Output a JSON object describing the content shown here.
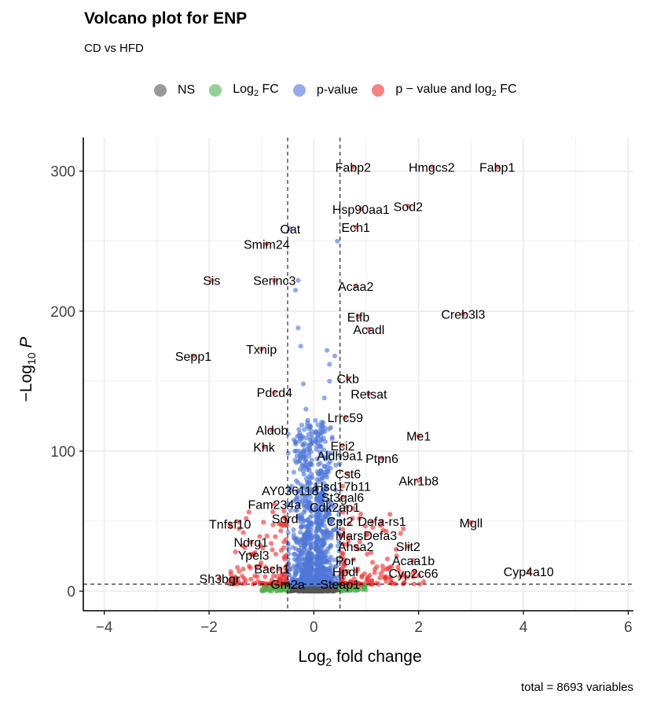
{
  "chart_data": {
    "type": "scatter",
    "title": "Volcano plot for ENP",
    "subtitle": "CD vs HFD",
    "xlabel": "Log2 fold change",
    "ylabel": "-Log10 P",
    "caption": "total = 8693 variables",
    "xlim": [
      -4.4,
      6.1
    ],
    "ylim": [
      -14,
      324
    ],
    "xticks": [
      -4,
      -2,
      0,
      2,
      4,
      6
    ],
    "yticks": [
      0,
      100,
      200,
      300
    ],
    "fc_cutoff": 0.5,
    "p_cutoff": 5,
    "grid": true,
    "legend_position": "top",
    "legend": [
      {
        "key": "NS",
        "label": "NS",
        "color": "#808080"
      },
      {
        "key": "FC",
        "label": "Log2 FC",
        "color": "#4db24d"
      },
      {
        "key": "P",
        "label": "p-value",
        "color": "#4f77d9"
      },
      {
        "key": "FC_P",
        "label": "p − value and log2 FC",
        "color": "#ee3030"
      }
    ],
    "labeled_genes": [
      {
        "gene": "Fabp2",
        "x": 0.75,
        "y": 303
      },
      {
        "gene": "Hmgcs2",
        "x": 2.25,
        "y": 303
      },
      {
        "gene": "Fabp1",
        "x": 3.5,
        "y": 303
      },
      {
        "gene": "Hsp90aa1",
        "x": 0.9,
        "y": 273
      },
      {
        "gene": "Sod2",
        "x": 1.8,
        "y": 275
      },
      {
        "gene": "Oat",
        "x": -0.45,
        "y": 259
      },
      {
        "gene": "Ech1",
        "x": 0.8,
        "y": 260
      },
      {
        "gene": "Smim24",
        "x": -0.9,
        "y": 248
      },
      {
        "gene": "Sis",
        "x": -1.95,
        "y": 222
      },
      {
        "gene": "Serinc3",
        "x": -0.75,
        "y": 222
      },
      {
        "gene": "Acaa2",
        "x": 0.8,
        "y": 218
      },
      {
        "gene": "Creb3l3",
        "x": 2.85,
        "y": 198
      },
      {
        "gene": "Etfb",
        "x": 0.85,
        "y": 196
      },
      {
        "gene": "Acadl",
        "x": 1.05,
        "y": 187
      },
      {
        "gene": "Txnip",
        "x": -1.0,
        "y": 173
      },
      {
        "gene": "Sepp1",
        "x": -2.3,
        "y": 168
      },
      {
        "gene": "Ckb",
        "x": 0.65,
        "y": 152
      },
      {
        "gene": "Pdcd4",
        "x": -0.75,
        "y": 142
      },
      {
        "gene": "Retsat",
        "x": 1.05,
        "y": 141
      },
      {
        "gene": "Lrrc59",
        "x": 0.6,
        "y": 124
      },
      {
        "gene": "Aldob",
        "x": -0.8,
        "y": 115
      },
      {
        "gene": "Me1",
        "x": 2.0,
        "y": 111
      },
      {
        "gene": "Eci2",
        "x": 0.55,
        "y": 104
      },
      {
        "gene": "Khk",
        "x": -0.95,
        "y": 103
      },
      {
        "gene": "Aldh9a1",
        "x": 0.5,
        "y": 97
      },
      {
        "gene": "Ptpn6",
        "x": 1.3,
        "y": 95
      },
      {
        "gene": "Cst6",
        "x": 0.65,
        "y": 84
      },
      {
        "gene": "Akr1b8",
        "x": 2.0,
        "y": 79
      },
      {
        "gene": "Hsd17b11",
        "x": 0.55,
        "y": 75
      },
      {
        "gene": "AY036118",
        "x": -0.45,
        "y": 72
      },
      {
        "gene": "St3gal6",
        "x": 0.55,
        "y": 67
      },
      {
        "gene": "Fam234a",
        "x": -0.75,
        "y": 62
      },
      {
        "gene": "Cdk2ap1",
        "x": 0.4,
        "y": 60
      },
      {
        "gene": "Sord",
        "x": -0.55,
        "y": 52
      },
      {
        "gene": "Cpt2",
        "x": 0.5,
        "y": 50
      },
      {
        "gene": "Defa-rs1",
        "x": 1.3,
        "y": 50
      },
      {
        "gene": "Mgll",
        "x": 3.0,
        "y": 49
      },
      {
        "gene": "Tnfsf10",
        "x": -1.6,
        "y": 48
      },
      {
        "gene": "MarsDefa3",
        "x": 1.0,
        "y": 40
      },
      {
        "gene": "Ndrg1",
        "x": -1.2,
        "y": 35
      },
      {
        "gene": "Ahsa2",
        "x": 0.8,
        "y": 32
      },
      {
        "gene": "Slit2",
        "x": 1.8,
        "y": 32
      },
      {
        "gene": "Ypel3",
        "x": -1.15,
        "y": 26
      },
      {
        "gene": "Por",
        "x": 0.6,
        "y": 22
      },
      {
        "gene": "Acaa1b",
        "x": 1.9,
        "y": 22
      },
      {
        "gene": "Bach1",
        "x": -0.8,
        "y": 16
      },
      {
        "gene": "Hpdl",
        "x": 0.6,
        "y": 14
      },
      {
        "gene": "Cyp2c66",
        "x": 1.9,
        "y": 13
      },
      {
        "gene": "Cyp4a10",
        "x": 4.1,
        "y": 14
      },
      {
        "gene": "Sh3bgr",
        "x": -1.8,
        "y": 9
      },
      {
        "gene": "Gm2a",
        "x": -0.5,
        "y": 5
      },
      {
        "gene": "Steap1",
        "x": 0.5,
        "y": 5
      }
    ]
  }
}
